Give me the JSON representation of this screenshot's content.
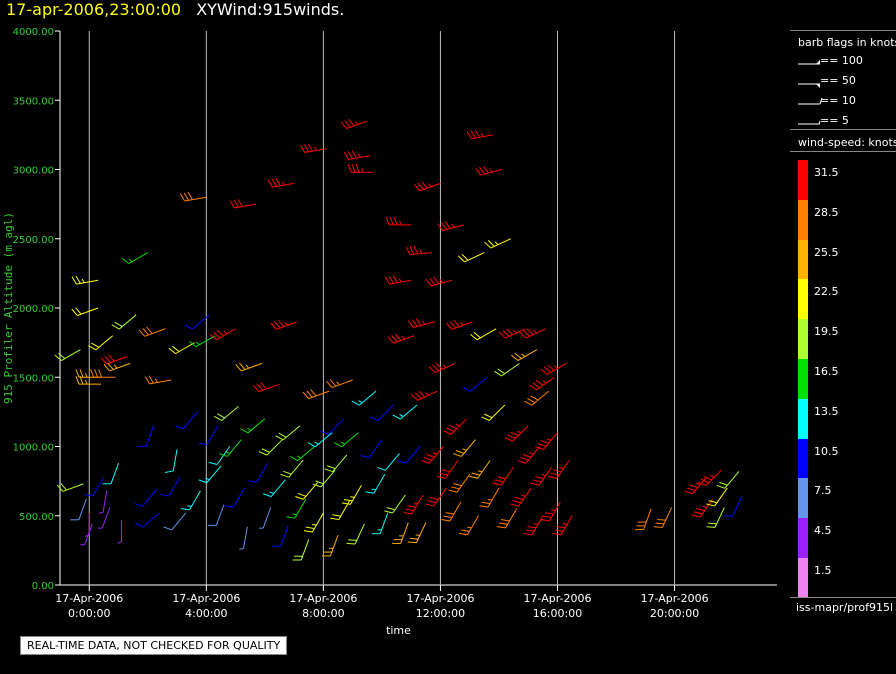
{
  "title": {
    "timestamp": "17-apr-2006,23:00:00",
    "name": "XYWind:915winds."
  },
  "chart_data": {
    "type": "wind-barb",
    "ylabel": "915 Profiler Altitude (m agl)",
    "xlabel": "time",
    "y_ticks": [
      "4000.00",
      "3500.00",
      "3000.00",
      "2500.00",
      "2000.00",
      "1500.00",
      "1000.00",
      "500.00",
      "0.00"
    ],
    "ylim": [
      0,
      4000
    ],
    "x_ticks": [
      {
        "date": "17-Apr-2006",
        "time": "0:00:00",
        "hour": 0
      },
      {
        "date": "17-Apr-2006",
        "time": "4:00:00",
        "hour": 4
      },
      {
        "date": "17-Apr-2006",
        "time": "8:00:00",
        "hour": 8
      },
      {
        "date": "17-Apr-2006",
        "time": "12:00:00",
        "hour": 12
      },
      {
        "date": "17-Apr-2006",
        "time": "16:00:00",
        "hour": 16
      },
      {
        "date": "17-Apr-2006",
        "time": "20:00:00",
        "hour": 20
      }
    ],
    "xlim_hours": [
      -1,
      23.5
    ],
    "grid": "vertical lines at tick times",
    "barb_legend": {
      "title": "barb flags in knots",
      "items": [
        "== 100",
        "== 50",
        "== 10",
        "== 5"
      ]
    },
    "colorbar": {
      "title": "wind-speed: knots",
      "levels": [
        {
          "label": "31.5",
          "color": "#ff0000"
        },
        {
          "label": "28.5",
          "color": "#ff7f00"
        },
        {
          "label": "25.5",
          "color": "#ffb000"
        },
        {
          "label": "22.5",
          "color": "#ffff00"
        },
        {
          "label": "19.5",
          "color": "#adff2f"
        },
        {
          "label": "16.5",
          "color": "#00e000"
        },
        {
          "label": "13.5",
          "color": "#00ffff"
        },
        {
          "label": "10.5",
          "color": "#0000ff"
        },
        {
          "label": "7.5",
          "color": "#6495ed"
        },
        {
          "label": "4.5",
          "color": "#9a20ff"
        },
        {
          "label": "1.5",
          "color": "#ee82ee"
        }
      ]
    },
    "observations": [
      {
        "hour": -0.3,
        "alt": 1700,
        "spd": 19,
        "dir": 240
      },
      {
        "hour": -0.2,
        "alt": 730,
        "spd": 20,
        "dir": 250
      },
      {
        "hour": -0.1,
        "alt": 620,
        "spd": 8,
        "dir": 200
      },
      {
        "hour": 0.0,
        "alt": 520,
        "spd": 3,
        "dir": 180
      },
      {
        "hour": 0.1,
        "alt": 440,
        "spd": 5,
        "dir": 200
      },
      {
        "hour": 0.3,
        "alt": 2200,
        "spd": 23,
        "dir": 260
      },
      {
        "hour": 0.3,
        "alt": 2000,
        "spd": 21,
        "dir": 250
      },
      {
        "hour": 0.4,
        "alt": 1500,
        "spd": 25,
        "dir": 270
      },
      {
        "hour": 0.4,
        "alt": 1450,
        "spd": 25,
        "dir": 270
      },
      {
        "hour": 0.5,
        "alt": 780,
        "spd": 10,
        "dir": 210
      },
      {
        "hour": 0.6,
        "alt": 680,
        "spd": 5,
        "dir": 190
      },
      {
        "hour": 0.7,
        "alt": 560,
        "spd": 3,
        "dir": 200
      },
      {
        "hour": 0.8,
        "alt": 1800,
        "spd": 22,
        "dir": 230
      },
      {
        "hour": 0.9,
        "alt": 1500,
        "spd": 28,
        "dir": 270
      },
      {
        "hour": 1.0,
        "alt": 880,
        "spd": 12,
        "dir": 200
      },
      {
        "hour": 1.1,
        "alt": 470,
        "spd": 4,
        "dir": 180
      },
      {
        "hour": 1.3,
        "alt": 1650,
        "spd": 30,
        "dir": 250
      },
      {
        "hour": 1.4,
        "alt": 1600,
        "spd": 24,
        "dir": 250
      },
      {
        "hour": 1.6,
        "alt": 1950,
        "spd": 20,
        "dir": 230
      },
      {
        "hour": 2.0,
        "alt": 2400,
        "spd": 17,
        "dir": 240
      },
      {
        "hour": 2.2,
        "alt": 1150,
        "spd": 11,
        "dir": 200
      },
      {
        "hour": 2.3,
        "alt": 690,
        "spd": 9,
        "dir": 220
      },
      {
        "hour": 2.4,
        "alt": 520,
        "spd": 9,
        "dir": 230
      },
      {
        "hour": 2.6,
        "alt": 1850,
        "spd": 29,
        "dir": 250
      },
      {
        "hour": 2.8,
        "alt": 1480,
        "spd": 27,
        "dir": 260
      },
      {
        "hour": 3.0,
        "alt": 980,
        "spd": 12,
        "dir": 190
      },
      {
        "hour": 3.1,
        "alt": 780,
        "spd": 11,
        "dir": 210
      },
      {
        "hour": 3.3,
        "alt": 520,
        "spd": 8,
        "dir": 220
      },
      {
        "hour": 3.6,
        "alt": 1750,
        "spd": 22,
        "dir": 240
      },
      {
        "hour": 3.7,
        "alt": 1250,
        "spd": 11,
        "dir": 220
      },
      {
        "hour": 3.8,
        "alt": 680,
        "spd": 13,
        "dir": 210
      },
      {
        "hour": 4.0,
        "alt": 2800,
        "spd": 29,
        "dir": 260
      },
      {
        "hour": 4.1,
        "alt": 1950,
        "spd": 11,
        "dir": 230
      },
      {
        "hour": 4.3,
        "alt": 1800,
        "spd": 17,
        "dir": 240
      },
      {
        "hour": 4.4,
        "alt": 1150,
        "spd": 10,
        "dir": 210
      },
      {
        "hour": 4.5,
        "alt": 860,
        "spd": 14,
        "dir": 220
      },
      {
        "hour": 4.6,
        "alt": 580,
        "spd": 8,
        "dir": 200
      },
      {
        "hour": 4.8,
        "alt": 1000,
        "spd": 12,
        "dir": 215
      },
      {
        "hour": 5.0,
        "alt": 1850,
        "spd": 33,
        "dir": 240
      },
      {
        "hour": 5.1,
        "alt": 1290,
        "spd": 18,
        "dir": 230
      },
      {
        "hour": 5.2,
        "alt": 1050,
        "spd": 16,
        "dir": 220
      },
      {
        "hour": 5.3,
        "alt": 700,
        "spd": 11,
        "dir": 210
      },
      {
        "hour": 5.4,
        "alt": 420,
        "spd": 6,
        "dir": 190
      },
      {
        "hour": 5.7,
        "alt": 2750,
        "spd": 31,
        "dir": 260
      },
      {
        "hour": 5.9,
        "alt": 1600,
        "spd": 25,
        "dir": 250
      },
      {
        "hour": 6.0,
        "alt": 1200,
        "spd": 15,
        "dir": 230
      },
      {
        "hour": 6.1,
        "alt": 880,
        "spd": 9,
        "dir": 210
      },
      {
        "hour": 6.2,
        "alt": 560,
        "spd": 7,
        "dir": 200
      },
      {
        "hour": 6.5,
        "alt": 1450,
        "spd": 30,
        "dir": 250
      },
      {
        "hour": 6.6,
        "alt": 1050,
        "spd": 19,
        "dir": 225
      },
      {
        "hour": 6.7,
        "alt": 760,
        "spd": 14,
        "dir": 220
      },
      {
        "hour": 6.8,
        "alt": 430,
        "spd": 10,
        "dir": 200
      },
      {
        "hour": 7.0,
        "alt": 2900,
        "spd": 33,
        "dir": 260
      },
      {
        "hour": 7.1,
        "alt": 1900,
        "spd": 33,
        "dir": 250
      },
      {
        "hour": 7.2,
        "alt": 1150,
        "spd": 20,
        "dir": 230
      },
      {
        "hour": 7.3,
        "alt": 900,
        "spd": 18,
        "dir": 220
      },
      {
        "hour": 7.4,
        "alt": 620,
        "spd": 16,
        "dir": 210
      },
      {
        "hour": 7.5,
        "alt": 330,
        "spd": 20,
        "dir": 200
      },
      {
        "hour": 7.7,
        "alt": 1000,
        "spd": 16,
        "dir": 230
      },
      {
        "hour": 7.8,
        "alt": 740,
        "spd": 21,
        "dir": 220
      },
      {
        "hour": 8.0,
        "alt": 520,
        "spd": 23,
        "dir": 210
      },
      {
        "hour": 8.1,
        "alt": 3150,
        "spd": 33,
        "dir": 260
      },
      {
        "hour": 8.2,
        "alt": 1400,
        "spd": 28,
        "dir": 250
      },
      {
        "hour": 8.3,
        "alt": 1100,
        "spd": 14,
        "dir": 230
      },
      {
        "hour": 8.4,
        "alt": 830,
        "spd": 20,
        "dir": 220
      },
      {
        "hour": 8.5,
        "alt": 360,
        "spd": 24,
        "dir": 200
      },
      {
        "hour": 8.7,
        "alt": 1200,
        "spd": 10,
        "dir": 225
      },
      {
        "hour": 8.8,
        "alt": 940,
        "spd": 19,
        "dir": 220
      },
      {
        "hour": 8.9,
        "alt": 610,
        "spd": 22,
        "dir": 210
      },
      {
        "hour": 9.0,
        "alt": 1480,
        "spd": 27,
        "dir": 250
      },
      {
        "hour": 9.2,
        "alt": 1100,
        "spd": 15,
        "dir": 230
      },
      {
        "hour": 9.3,
        "alt": 720,
        "spd": 23,
        "dir": 210
      },
      {
        "hour": 9.4,
        "alt": 440,
        "spd": 19,
        "dir": 205
      },
      {
        "hour": 9.5,
        "alt": 3350,
        "spd": 33,
        "dir": 250
      },
      {
        "hour": 9.6,
        "alt": 3100,
        "spd": 33,
        "dir": 260
      },
      {
        "hour": 9.7,
        "alt": 2980,
        "spd": 33,
        "dir": 270
      },
      {
        "hour": 9.8,
        "alt": 1400,
        "spd": 13,
        "dir": 230
      },
      {
        "hour": 10.0,
        "alt": 1050,
        "spd": 10,
        "dir": 215
      },
      {
        "hour": 10.1,
        "alt": 800,
        "spd": 14,
        "dir": 210
      },
      {
        "hour": 10.2,
        "alt": 520,
        "spd": 13,
        "dir": 200
      },
      {
        "hour": 10.4,
        "alt": 1300,
        "spd": 11,
        "dir": 225
      },
      {
        "hour": 10.6,
        "alt": 950,
        "spd": 12,
        "dir": 220
      },
      {
        "hour": 10.8,
        "alt": 650,
        "spd": 20,
        "dir": 215
      },
      {
        "hour": 10.9,
        "alt": 450,
        "spd": 26,
        "dir": 200
      },
      {
        "hour": 11.0,
        "alt": 2600,
        "spd": 33,
        "dir": 270
      },
      {
        "hour": 11.0,
        "alt": 2200,
        "spd": 33,
        "dir": 260
      },
      {
        "hour": 11.1,
        "alt": 1800,
        "spd": 33,
        "dir": 250
      },
      {
        "hour": 11.2,
        "alt": 1300,
        "spd": 13,
        "dir": 230
      },
      {
        "hour": 11.3,
        "alt": 1000,
        "spd": 11,
        "dir": 220
      },
      {
        "hour": 11.4,
        "alt": 650,
        "spd": 33,
        "dir": 210
      },
      {
        "hour": 11.5,
        "alt": 450,
        "spd": 24,
        "dir": 205
      },
      {
        "hour": 11.7,
        "alt": 2400,
        "spd": 33,
        "dir": 265
      },
      {
        "hour": 11.8,
        "alt": 1900,
        "spd": 33,
        "dir": 255
      },
      {
        "hour": 11.9,
        "alt": 1400,
        "spd": 33,
        "dir": 245
      },
      {
        "hour": 12.0,
        "alt": 2900,
        "spd": 33,
        "dir": 250
      },
      {
        "hour": 12.1,
        "alt": 1000,
        "spd": 33,
        "dir": 220
      },
      {
        "hour": 12.2,
        "alt": 700,
        "spd": 30,
        "dir": 215
      },
      {
        "hour": 12.4,
        "alt": 2200,
        "spd": 33,
        "dir": 255
      },
      {
        "hour": 12.5,
        "alt": 1600,
        "spd": 33,
        "dir": 245
      },
      {
        "hour": 12.6,
        "alt": 900,
        "spd": 30,
        "dir": 215
      },
      {
        "hour": 12.7,
        "alt": 600,
        "spd": 28,
        "dir": 210
      },
      {
        "hour": 12.8,
        "alt": 2600,
        "spd": 33,
        "dir": 255
      },
      {
        "hour": 12.9,
        "alt": 1200,
        "spd": 33,
        "dir": 225
      },
      {
        "hour": 13.0,
        "alt": 800,
        "spd": 29,
        "dir": 215
      },
      {
        "hour": 13.1,
        "alt": 1900,
        "spd": 33,
        "dir": 250
      },
      {
        "hour": 13.2,
        "alt": 1050,
        "spd": 24,
        "dir": 220
      },
      {
        "hour": 13.3,
        "alt": 500,
        "spd": 27,
        "dir": 210
      },
      {
        "hour": 13.5,
        "alt": 2400,
        "spd": 21,
        "dir": 245
      },
      {
        "hour": 13.6,
        "alt": 1500,
        "spd": 10,
        "dir": 230
      },
      {
        "hour": 13.7,
        "alt": 900,
        "spd": 24,
        "dir": 215
      },
      {
        "hour": 13.8,
        "alt": 3250,
        "spd": 33,
        "dir": 260
      },
      {
        "hour": 13.9,
        "alt": 1850,
        "spd": 21,
        "dir": 240
      },
      {
        "hour": 14.0,
        "alt": 700,
        "spd": 27,
        "dir": 210
      },
      {
        "hour": 14.1,
        "alt": 3000,
        "spd": 33,
        "dir": 255
      },
      {
        "hour": 14.2,
        "alt": 1300,
        "spd": 22,
        "dir": 225
      },
      {
        "hour": 14.4,
        "alt": 2500,
        "spd": 23,
        "dir": 245
      },
      {
        "hour": 14.5,
        "alt": 850,
        "spd": 32,
        "dir": 215
      },
      {
        "hour": 14.6,
        "alt": 550,
        "spd": 28,
        "dir": 210
      },
      {
        "hour": 14.7,
        "alt": 1600,
        "spd": 20,
        "dir": 235
      },
      {
        "hour": 14.9,
        "alt": 1850,
        "spd": 33,
        "dir": 245
      },
      {
        "hour": 15.0,
        "alt": 1150,
        "spd": 33,
        "dir": 225
      },
      {
        "hour": 15.1,
        "alt": 700,
        "spd": 33,
        "dir": 215
      },
      {
        "hour": 15.3,
        "alt": 1700,
        "spd": 24,
        "dir": 240
      },
      {
        "hour": 15.4,
        "alt": 1000,
        "spd": 33,
        "dir": 220
      },
      {
        "hour": 15.5,
        "alt": 500,
        "spd": 33,
        "dir": 210
      },
      {
        "hour": 15.6,
        "alt": 1850,
        "spd": 33,
        "dir": 245
      },
      {
        "hour": 15.7,
        "alt": 1400,
        "spd": 29,
        "dir": 230
      },
      {
        "hour": 15.8,
        "alt": 850,
        "spd": 33,
        "dir": 215
      },
      {
        "hour": 15.9,
        "alt": 1500,
        "spd": 33,
        "dir": 235
      },
      {
        "hour": 16.0,
        "alt": 1100,
        "spd": 33,
        "dir": 220
      },
      {
        "hour": 16.1,
        "alt": 600,
        "spd": 33,
        "dir": 210
      },
      {
        "hour": 16.3,
        "alt": 1600,
        "spd": 33,
        "dir": 240
      },
      {
        "hour": 16.4,
        "alt": 900,
        "spd": 33,
        "dir": 215
      },
      {
        "hour": 16.5,
        "alt": 500,
        "spd": 33,
        "dir": 210
      },
      {
        "hour": 19.2,
        "alt": 550,
        "spd": 29,
        "dir": 200
      },
      {
        "hour": 19.9,
        "alt": 560,
        "spd": 29,
        "dir": 205
      },
      {
        "hour": 21.1,
        "alt": 780,
        "spd": 33,
        "dir": 220
      },
      {
        "hour": 21.3,
        "alt": 620,
        "spd": 33,
        "dir": 215
      },
      {
        "hour": 21.6,
        "alt": 830,
        "spd": 33,
        "dir": 225
      },
      {
        "hour": 21.7,
        "alt": 560,
        "spd": 18,
        "dir": 205
      },
      {
        "hour": 21.8,
        "alt": 700,
        "spd": 21,
        "dir": 215
      },
      {
        "hour": 22.2,
        "alt": 820,
        "spd": 20,
        "dir": 220
      },
      {
        "hour": 22.3,
        "alt": 640,
        "spd": 11,
        "dir": 205
      }
    ]
  },
  "footer_note": "REAL-TIME DATA, NOT CHECKED FOR QUALITY",
  "source_label": "iss-mapr/prof915l"
}
